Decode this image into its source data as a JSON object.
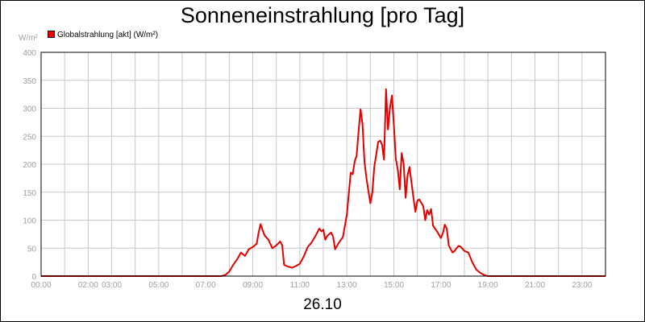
{
  "title": "Sonneneinstrahlung [pro Tag]",
  "unit_label": "W/m²",
  "legend": {
    "label": "Globalstrahlung [akt] (W/m²)",
    "color": "#e00000"
  },
  "date_label": "26.10",
  "chart_data": {
    "type": "line",
    "title": "Sonneneinstrahlung [pro Tag]",
    "xlabel": "26.10",
    "ylabel": "W/m²",
    "ylim": [
      0,
      400
    ],
    "xlim": [
      "00:00",
      "24:00"
    ],
    "yticks": [
      "0",
      "50",
      "100",
      "150",
      "200",
      "250",
      "300",
      "350",
      "400"
    ],
    "xticks": [
      "00:00",
      "02:00",
      "03:00",
      "05:00",
      "07:00",
      "09:00",
      "11:00",
      "13:00",
      "15:00",
      "17:00",
      "19:00",
      "21:00",
      "23:00"
    ],
    "grid": true,
    "legend_position": "top-left",
    "series": [
      {
        "name": "Globalstrahlung [akt] (W/m²)",
        "color": "#e00000",
        "points": [
          [
            "00:00",
            0
          ],
          [
            "07:00",
            0
          ],
          [
            "07:40",
            0
          ],
          [
            "07:50",
            2
          ],
          [
            "08:00",
            8
          ],
          [
            "08:10",
            20
          ],
          [
            "08:20",
            30
          ],
          [
            "08:30",
            42
          ],
          [
            "08:40",
            36
          ],
          [
            "08:50",
            48
          ],
          [
            "09:00",
            52
          ],
          [
            "09:10",
            58
          ],
          [
            "09:15",
            78
          ],
          [
            "09:20",
            93
          ],
          [
            "09:25",
            82
          ],
          [
            "09:30",
            73
          ],
          [
            "09:40",
            65
          ],
          [
            "09:50",
            50
          ],
          [
            "10:00",
            55
          ],
          [
            "10:10",
            62
          ],
          [
            "10:15",
            55
          ],
          [
            "10:20",
            20
          ],
          [
            "10:30",
            17
          ],
          [
            "10:40",
            15
          ],
          [
            "10:50",
            18
          ],
          [
            "11:00",
            22
          ],
          [
            "11:10",
            35
          ],
          [
            "11:20",
            52
          ],
          [
            "11:30",
            60
          ],
          [
            "11:40",
            72
          ],
          [
            "11:50",
            85
          ],
          [
            "11:55",
            80
          ],
          [
            "12:00",
            83
          ],
          [
            "12:05",
            65
          ],
          [
            "12:10",
            72
          ],
          [
            "12:20",
            78
          ],
          [
            "12:25",
            70
          ],
          [
            "12:30",
            48
          ],
          [
            "12:40",
            60
          ],
          [
            "12:50",
            70
          ],
          [
            "13:00",
            110
          ],
          [
            "13:10",
            185
          ],
          [
            "13:15",
            182
          ],
          [
            "13:20",
            205
          ],
          [
            "13:25",
            215
          ],
          [
            "13:30",
            260
          ],
          [
            "13:35",
            298
          ],
          [
            "13:40",
            272
          ],
          [
            "13:45",
            205
          ],
          [
            "13:50",
            175
          ],
          [
            "14:00",
            130
          ],
          [
            "14:05",
            150
          ],
          [
            "14:10",
            195
          ],
          [
            "14:20",
            240
          ],
          [
            "14:25",
            242
          ],
          [
            "14:30",
            235
          ],
          [
            "14:35",
            208
          ],
          [
            "14:40",
            334
          ],
          [
            "14:45",
            262
          ],
          [
            "14:50",
            300
          ],
          [
            "14:55",
            323
          ],
          [
            "15:00",
            270
          ],
          [
            "15:05",
            210
          ],
          [
            "15:10",
            190
          ],
          [
            "15:15",
            155
          ],
          [
            "15:20",
            220
          ],
          [
            "15:25",
            200
          ],
          [
            "15:30",
            140
          ],
          [
            "15:35",
            180
          ],
          [
            "15:40",
            195
          ],
          [
            "15:50",
            140
          ],
          [
            "15:55",
            115
          ],
          [
            "16:00",
            135
          ],
          [
            "16:05",
            137
          ],
          [
            "16:15",
            125
          ],
          [
            "16:20",
            100
          ],
          [
            "16:25",
            118
          ],
          [
            "16:30",
            110
          ],
          [
            "16:35",
            120
          ],
          [
            "16:40",
            90
          ],
          [
            "16:50",
            80
          ],
          [
            "17:00",
            68
          ],
          [
            "17:05",
            77
          ],
          [
            "17:10",
            92
          ],
          [
            "17:15",
            85
          ],
          [
            "17:20",
            55
          ],
          [
            "17:25",
            48
          ],
          [
            "17:30",
            42
          ],
          [
            "17:35",
            45
          ],
          [
            "17:40",
            50
          ],
          [
            "17:45",
            54
          ],
          [
            "17:50",
            53
          ],
          [
            "18:00",
            45
          ],
          [
            "18:10",
            42
          ],
          [
            "18:20",
            25
          ],
          [
            "18:30",
            12
          ],
          [
            "18:40",
            6
          ],
          [
            "18:50",
            2
          ],
          [
            "19:00",
            0
          ],
          [
            "24:00",
            0
          ]
        ]
      }
    ]
  }
}
